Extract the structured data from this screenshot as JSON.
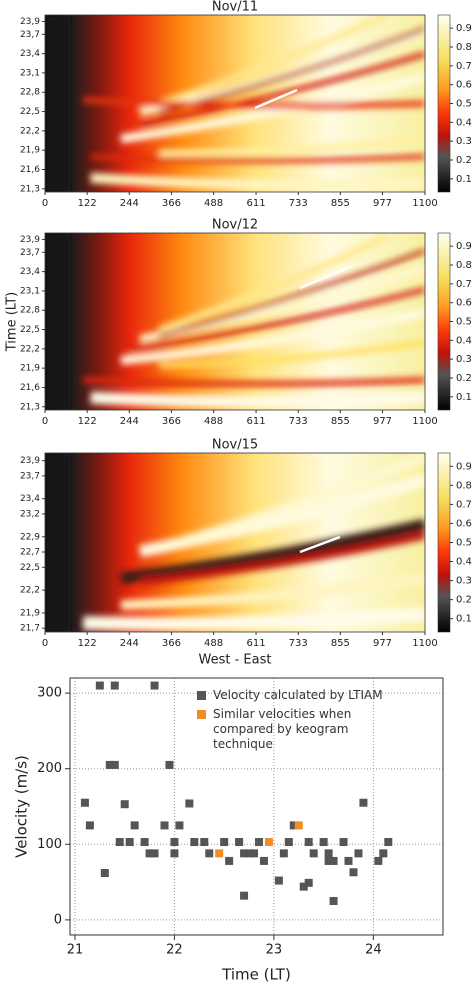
{
  "chart_data": [
    {
      "type": "heatmap",
      "title": "Nov/11",
      "xlim": [
        0,
        1100
      ],
      "xticks": [
        0,
        122,
        244,
        366,
        488,
        611,
        733,
        855,
        977,
        1100
      ],
      "ylim": [
        21.25,
        24.0
      ],
      "yticks": [
        {
          "value": 21.3,
          "label": "21,3"
        },
        {
          "value": 21.6,
          "label": "21,6"
        },
        {
          "value": 21.9,
          "label": "21,9"
        },
        {
          "value": 22.2,
          "label": "22,2"
        },
        {
          "value": 22.5,
          "label": "22,5"
        },
        {
          "value": 22.8,
          "label": "22,8"
        },
        {
          "value": 23.1,
          "label": "23,1"
        },
        {
          "value": 23.4,
          "label": "23,4"
        },
        {
          "value": 23.7,
          "label": "23,7"
        },
        {
          "value": 23.9,
          "label": "23,9"
        }
      ],
      "clim": [
        0.03,
        0.97
      ],
      "cticks": [
        0.1,
        0.2,
        0.3,
        0.4,
        0.5,
        0.6,
        0.7,
        0.8,
        0.9
      ]
    },
    {
      "type": "heatmap",
      "title": "Nov/12",
      "ylabel": "Time (LT)",
      "xlim": [
        0,
        1100
      ],
      "xticks": [
        0,
        122,
        244,
        366,
        488,
        611,
        733,
        855,
        977,
        1100
      ],
      "ylim": [
        21.25,
        24.0
      ],
      "yticks": [
        {
          "value": 21.3,
          "label": "21,3"
        },
        {
          "value": 21.6,
          "label": "21,6"
        },
        {
          "value": 21.9,
          "label": "21,9"
        },
        {
          "value": 22.2,
          "label": "22,2"
        },
        {
          "value": 22.5,
          "label": "22,5"
        },
        {
          "value": 22.8,
          "label": "22,8"
        },
        {
          "value": 23.1,
          "label": "23,1"
        },
        {
          "value": 23.4,
          "label": "23,4"
        },
        {
          "value": 23.7,
          "label": "23,7"
        },
        {
          "value": 23.9,
          "label": "23,9"
        }
      ],
      "clim": [
        0.03,
        0.97
      ],
      "cticks": [
        0.1,
        0.2,
        0.3,
        0.4,
        0.5,
        0.6,
        0.7,
        0.8,
        0.9
      ]
    },
    {
      "type": "heatmap",
      "title": "Nov/15",
      "xlabel": "West - East",
      "xlim": [
        0,
        1100
      ],
      "xticks": [
        0,
        122,
        244,
        366,
        488,
        611,
        733,
        855,
        977,
        1100
      ],
      "ylim": [
        21.65,
        24.0
      ],
      "yticks": [
        {
          "value": 21.7,
          "label": "21,7"
        },
        {
          "value": 21.9,
          "label": "21,9"
        },
        {
          "value": 22.2,
          "label": "22,2"
        },
        {
          "value": 22.5,
          "label": "22,5"
        },
        {
          "value": 22.7,
          "label": "22,7"
        },
        {
          "value": 22.9,
          "label": "22,9"
        },
        {
          "value": 23.2,
          "label": "23,2"
        },
        {
          "value": 23.4,
          "label": "23,4"
        },
        {
          "value": 23.7,
          "label": "23,7"
        },
        {
          "value": 23.9,
          "label": "23,9"
        }
      ],
      "clim": [
        0.03,
        0.97
      ],
      "cticks": [
        0.1,
        0.2,
        0.3,
        0.4,
        0.5,
        0.6,
        0.7,
        0.8,
        0.9
      ]
    },
    {
      "type": "scatter",
      "xlabel": "Time (LT)",
      "ylabel": "Velocity (m/s)",
      "xlim": [
        20.95,
        24.7
      ],
      "xticks": [
        21,
        22,
        23,
        24
      ],
      "ylim": [
        -20,
        320
      ],
      "yticks": [
        0,
        100,
        200,
        300
      ],
      "grid": true,
      "series": [
        {
          "name": "Velocity calculated by LTIAM",
          "color": "#555555",
          "x": [
            21.1,
            21.15,
            21.25,
            21.3,
            21.35,
            21.4,
            21.4,
            21.45,
            21.5,
            21.55,
            21.6,
            21.7,
            21.75,
            21.8,
            21.8,
            21.9,
            21.95,
            22.0,
            22.0,
            22.05,
            22.15,
            22.2,
            22.3,
            22.35,
            22.5,
            22.55,
            22.65,
            22.7,
            22.7,
            22.75,
            22.8,
            22.85,
            22.9,
            23.05,
            23.1,
            23.15,
            23.2,
            23.3,
            23.35,
            23.35,
            23.4,
            23.5,
            23.55,
            23.55,
            23.6,
            23.6,
            23.7,
            23.75,
            23.8,
            23.85,
            23.9,
            24.05,
            24.1,
            24.15
          ],
          "values": [
            155,
            125,
            310,
            62,
            205,
            205,
            310,
            103,
            153,
            103,
            125,
            103,
            88,
            88,
            310,
            125,
            205,
            103,
            88,
            125,
            154,
            103,
            103,
            88,
            103,
            78,
            103,
            88,
            32,
            88,
            88,
            103,
            78,
            52,
            88,
            103,
            125,
            44,
            49,
            103,
            88,
            103,
            88,
            78,
            78,
            25,
            103,
            78,
            63,
            88,
            155,
            78,
            88,
            103
          ]
        },
        {
          "name": "Similar velocities when compared by keogram technique",
          "color": "#f28c28",
          "x": [
            22.45,
            22.95,
            23.25
          ],
          "values": [
            88,
            103,
            125
          ]
        }
      ]
    }
  ]
}
